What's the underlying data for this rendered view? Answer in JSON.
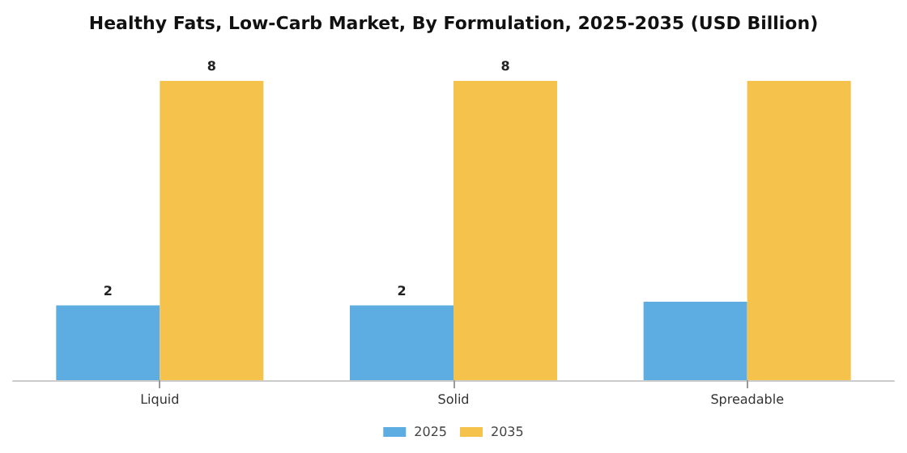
{
  "chart_data": {
    "type": "bar",
    "title": "Healthy Fats, Low-Carb Market, By Formulation, 2025-2035 (USD Billion)",
    "categories": [
      "Liquid",
      "Solid",
      "Spreadable"
    ],
    "series": [
      {
        "name": "2025",
        "color": "#5dade2",
        "values": [
          2,
          2,
          2.1
        ],
        "value_labels": [
          "2",
          "2",
          null
        ]
      },
      {
        "name": "2035",
        "color": "#f5c24c",
        "values": [
          8.0,
          8.0,
          8.0
        ],
        "value_labels": [
          "8",
          "8",
          null
        ]
      }
    ],
    "grid": false,
    "legend": "bottom"
  }
}
